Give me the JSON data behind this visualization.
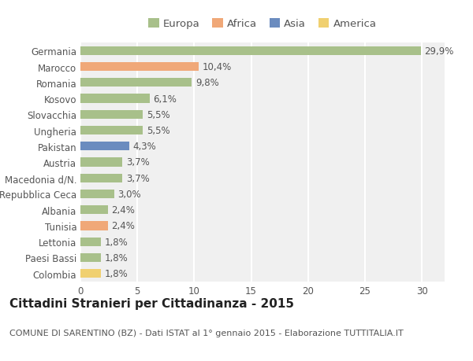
{
  "categories": [
    "Germania",
    "Marocco",
    "Romania",
    "Kosovo",
    "Slovacchia",
    "Ungheria",
    "Pakistan",
    "Austria",
    "Macedonia d/N.",
    "Repubblica Ceca",
    "Albania",
    "Tunisia",
    "Lettonia",
    "Paesi Bassi",
    "Colombia"
  ],
  "values": [
    29.9,
    10.4,
    9.8,
    6.1,
    5.5,
    5.5,
    4.3,
    3.7,
    3.7,
    3.0,
    2.4,
    2.4,
    1.8,
    1.8,
    1.8
  ],
  "labels": [
    "29,9%",
    "10,4%",
    "9,8%",
    "6,1%",
    "5,5%",
    "5,5%",
    "4,3%",
    "3,7%",
    "3,7%",
    "3,0%",
    "2,4%",
    "2,4%",
    "1,8%",
    "1,8%",
    "1,8%"
  ],
  "colors": [
    "#a8c08a",
    "#f0a878",
    "#a8c08a",
    "#a8c08a",
    "#a8c08a",
    "#a8c08a",
    "#6b8cbf",
    "#a8c08a",
    "#a8c08a",
    "#a8c08a",
    "#a8c08a",
    "#f0a878",
    "#a8c08a",
    "#a8c08a",
    "#f0d070"
  ],
  "legend_labels": [
    "Europa",
    "Africa",
    "Asia",
    "America"
  ],
  "legend_colors": [
    "#a8c08a",
    "#f0a878",
    "#6b8cbf",
    "#f0d070"
  ],
  "title": "Cittadini Stranieri per Cittadinanza - 2015",
  "subtitle": "COMUNE DI SARENTINO (BZ) - Dati ISTAT al 1° gennaio 2015 - Elaborazione TUTTITALIA.IT",
  "xlim": [
    0,
    32
  ],
  "xticks": [
    0,
    5,
    10,
    15,
    20,
    25,
    30
  ],
  "bg_color": "#ffffff",
  "plot_bg_color": "#f0f0f0",
  "grid_color": "#ffffff",
  "bar_height": 0.55,
  "title_fontsize": 11,
  "subtitle_fontsize": 8,
  "label_fontsize": 8.5,
  "tick_fontsize": 8.5,
  "legend_fontsize": 9.5
}
